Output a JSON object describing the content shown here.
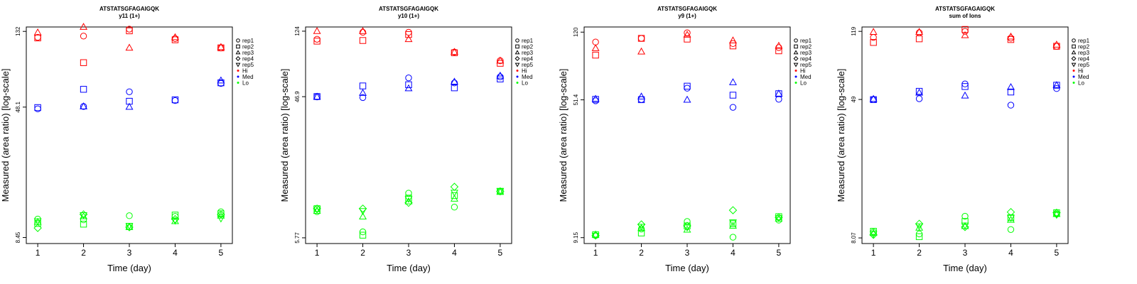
{
  "colors": {
    "Hi": "#ff0000",
    "Med": "#0000ff",
    "Lo": "#00ff00"
  },
  "legend": {
    "reps": [
      {
        "label": "rep1",
        "shape": "circle"
      },
      {
        "label": "rep2",
        "shape": "square"
      },
      {
        "label": "rep3",
        "shape": "triangle-up"
      },
      {
        "label": "rep4",
        "shape": "diamond"
      },
      {
        "label": "rep5",
        "shape": "triangle-down"
      }
    ],
    "groups": [
      "Hi",
      "Med",
      "Lo"
    ]
  },
  "chart_data": [
    {
      "type": "scatter",
      "title": "ATSTATSGFAGAIGQK",
      "subtitle": "y11 (1+)",
      "xlabel": "Time (day)",
      "ylabel": "Measured (area ratio) [log-scale]",
      "yscale": "log",
      "x": [
        1,
        2,
        3,
        4,
        5
      ],
      "xlim": [
        0.75,
        5.25
      ],
      "ylim": [
        7.8,
        140
      ],
      "yticks": [
        {
          "value": 8.45,
          "label": "8.45"
        },
        {
          "value": 48.1,
          "label": "48.1"
        },
        {
          "value": 132,
          "label": "132"
        }
      ],
      "series": {
        "Hi": [
          [
            122,
            124,
            136,
            120,
            106
          ],
          [
            121,
            87,
            133,
            118,
            106
          ],
          [
            130,
            140,
            106,
            122,
            107
          ],
          null,
          null
        ],
        "Med": [
          [
            47,
            48.5,
            59,
            52.5,
            66
          ],
          [
            47.8,
            61,
            52,
            53,
            66.5
          ],
          [
            null,
            48.5,
            48.2,
            null,
            68.5
          ],
          null,
          null
        ],
        "Lo": [
          [
            10.8,
            10.7,
            11.3,
            11.2,
            11.9
          ],
          [
            10.2,
            10.1,
            9.8,
            11.4,
            11.6
          ],
          [
            10.4,
            11.2,
            9.7,
            10.5,
            11.3
          ],
          [
            9.6,
            11.5,
            9.7,
            10.8,
            11.5
          ],
          [
            10.5,
            11.4,
            9.9,
            10.6,
            10.9
          ]
        ]
      }
    },
    {
      "type": "scatter",
      "title": "ATSTATSGFAGAIGQK",
      "subtitle": "y10 (1+)",
      "xlabel": "Time (day)",
      "ylabel": "Measured (area ratio) [log-scale]",
      "yscale": "log",
      "x": [
        1,
        2,
        3,
        4,
        5
      ],
      "xlim": [
        0.75,
        5.25
      ],
      "ylim": [
        5.3,
        132
      ],
      "yticks": [
        {
          "value": 5.77,
          "label": "5.77"
        },
        {
          "value": 46.9,
          "label": "46.9"
        },
        {
          "value": 124,
          "label": "124"
        }
      ],
      "series": {
        "Hi": [
          [
            110,
            122,
            122,
            91,
            80
          ],
          [
            107,
            108,
            118,
            90,
            77
          ],
          [
            124,
            124,
            110,
            91,
            80
          ],
          null,
          null
        ],
        "Med": [
          [
            46.8,
            46.3,
            62,
            57.5,
            63
          ],
          [
            47,
            55,
            56,
            53.5,
            61
          ],
          [
            46.8,
            49.5,
            53,
            58.5,
            64
          ],
          null,
          null
        ],
        "Lo": [
          [
            8.5,
            6.3,
            11.2,
            9.1,
            11.5
          ],
          [
            8.9,
            6,
            10.4,
            10.8,
            11.5
          ],
          [
            8.6,
            7.9,
            9.9,
            10.3,
            11.4
          ],
          [
            8.9,
            8.9,
            9.7,
            12.3,
            11.5
          ],
          [
            8.8,
            8.6,
            10.3,
            11.3,
            11.6
          ]
        ]
      }
    },
    {
      "type": "scatter",
      "title": "ATSTATSGFAGAIGQK",
      "subtitle": "y9 (1+)",
      "xlabel": "Time (day)",
      "ylabel": "Measured (area ratio) [log-scale]",
      "yscale": "log",
      "x": [
        1,
        2,
        3,
        4,
        5
      ],
      "xlim": [
        0.75,
        5.25
      ],
      "ylim": [
        8.5,
        128
      ],
      "yticks": [
        {
          "value": 9.15,
          "label": "9.15"
        },
        {
          "value": 51.4,
          "label": "51.4"
        },
        {
          "value": 120,
          "label": "120"
        }
      ],
      "series": {
        "Hi": [
          [
            106,
            111,
            119,
            104,
            99
          ],
          [
            90,
            111,
            110,
            101,
            95
          ],
          [
            98,
            94,
            116,
            108,
            101
          ],
          null,
          null
        ],
        "Med": [
          [
            50.8,
            51.6,
            59.5,
            46.8,
            51.8
          ],
          [
            51.7,
            51.5,
            61,
            54.5,
            55.5
          ],
          [
            52,
            53.5,
            51.4,
            64,
            55.5
          ],
          null,
          null
        ],
        "Lo": [
          [
            9.4,
            10.2,
            11.2,
            9.2,
            11.4
          ],
          [
            9.5,
            9.7,
            10.6,
            10.9,
            11.9
          ],
          [
            9.5,
            10.3,
            10.1,
            10.6,
            11.6
          ],
          [
            9.4,
            10.8,
            10.6,
            12.9,
            11.8
          ],
          [
            9.4,
            10.5,
            10.4,
            11.1,
            11.7
          ]
        ]
      }
    },
    {
      "type": "scatter",
      "title": "ATSTATSGFAGAIGQK",
      "subtitle": "sum of Ions",
      "xlabel": "Time (day)",
      "ylabel": "Measured (area ratio) [log-scale]",
      "yscale": "log",
      "x": [
        1,
        2,
        3,
        4,
        5
      ],
      "xlim": [
        0.75,
        5.25
      ],
      "ylim": [
        7.5,
        126
      ],
      "yticks": [
        {
          "value": 8.07,
          "label": "8.07"
        },
        {
          "value": 49,
          "label": "49"
        },
        {
          "value": 119,
          "label": "119"
        }
      ],
      "series": {
        "Hi": [
          [
            110,
            117,
            119,
            109,
            98
          ],
          [
            103,
            108,
            122,
            107,
            98
          ],
          [
            118,
            118,
            113,
            111,
            100
          ],
          null,
          null
        ],
        "Med": [
          [
            48.9,
            49.5,
            60,
            45.5,
            56.5
          ],
          [
            48.9,
            54.5,
            58,
            54,
            59
          ],
          [
            49.3,
            53.5,
            51.5,
            57.5,
            59
          ],
          null,
          null
        ],
        "Lo": [
          [
            8.7,
            8.5,
            10.7,
            9,
            11
          ],
          [
            8.8,
            8.2,
            10,
            10.5,
            11.2
          ],
          [
            8.6,
            9.2,
            9.4,
            10.2,
            11
          ],
          [
            8.4,
            9.7,
            9.3,
            11.3,
            11.2
          ],
          [
            8.5,
            9.4,
            9.5,
            10.5,
            10.9
          ]
        ]
      }
    }
  ]
}
